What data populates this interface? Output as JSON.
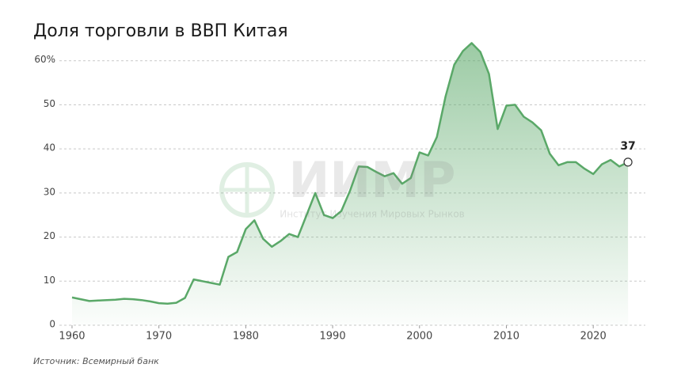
{
  "chart_data": {
    "type": "area",
    "title": "Доля торговли в ВВП Китая",
    "source": "Источник: Всемирный банк",
    "watermark": {
      "title": "ИИМР",
      "subtitle": "Институт Изучения Мировых Рынков"
    },
    "color": "#5aa868",
    "x": [
      1960,
      1961,
      1962,
      1963,
      1964,
      1965,
      1966,
      1967,
      1968,
      1969,
      1970,
      1971,
      1972,
      1973,
      1974,
      1975,
      1976,
      1977,
      1978,
      1979,
      1980,
      1981,
      1982,
      1983,
      1984,
      1985,
      1986,
      1987,
      1988,
      1989,
      1990,
      1991,
      1992,
      1993,
      1994,
      1995,
      1996,
      1997,
      1998,
      1999,
      2000,
      2001,
      2002,
      2003,
      2004,
      2005,
      2006,
      2007,
      2008,
      2009,
      2010,
      2011,
      2012,
      2013,
      2014,
      2015,
      2016,
      2017,
      2018,
      2019,
      2020,
      2021,
      2022,
      2023,
      2024
    ],
    "values": [
      6.3,
      5.9,
      5.5,
      5.6,
      5.7,
      5.8,
      6.0,
      5.9,
      5.7,
      5.4,
      5.0,
      4.9,
      5.1,
      6.2,
      10.4,
      10.0,
      9.6,
      9.2,
      15.5,
      16.6,
      21.8,
      23.8,
      19.6,
      17.8,
      19.1,
      20.7,
      20.0,
      25.0,
      30.0,
      25.0,
      24.3,
      25.9,
      30.5,
      36.0,
      35.9,
      34.8,
      33.8,
      34.5,
      32.1,
      33.4,
      39.2,
      38.5,
      42.7,
      51.9,
      59.1,
      62.2,
      64.0,
      62.0,
      57.0,
      44.5,
      49.8,
      50.0,
      47.3,
      46.0,
      44.2,
      38.9,
      36.3,
      37.0,
      37.0,
      35.5,
      34.3,
      36.5,
      37.5,
      36.0,
      37
    ],
    "xlim": [
      1959,
      2026
    ],
    "xticks": [
      1960,
      1970,
      1980,
      1990,
      2000,
      2010,
      2020
    ],
    "ylim": [
      0,
      63
    ],
    "yticks": [
      0,
      10,
      20,
      30,
      40,
      50,
      {
        "value": 60,
        "label": "60%"
      }
    ],
    "grid": true
  }
}
